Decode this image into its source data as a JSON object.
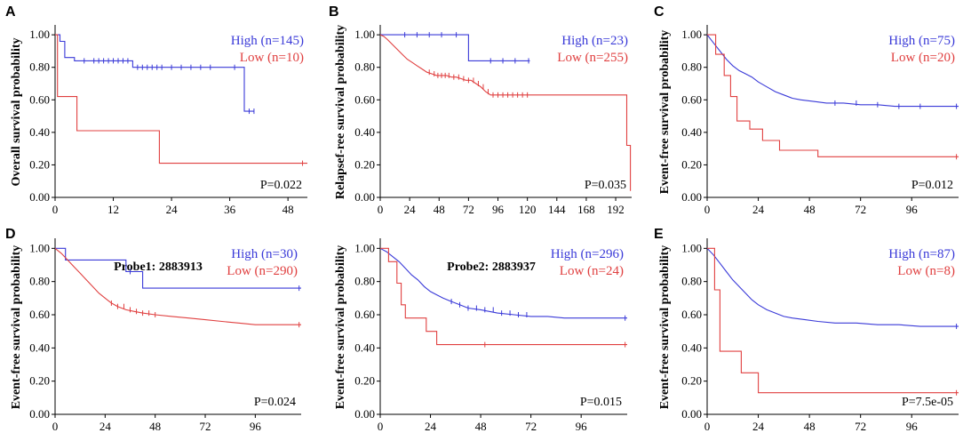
{
  "colors": {
    "high": "#3a3ad8",
    "low": "#e04040",
    "axis": "#000000"
  },
  "chart_data": [
    {
      "type": "line",
      "panel_letter": "A",
      "title": "",
      "ylabel": "Overall survival probability",
      "xlabel": "",
      "xlim": [
        0,
        52
      ],
      "ylim": [
        0,
        1.05
      ],
      "x_ticks": [
        0,
        12,
        24,
        36,
        48
      ],
      "y_ticks": [
        0,
        0.2,
        0.4,
        0.6,
        0.8,
        1.0
      ],
      "legend": [
        {
          "text": "High (n=145)",
          "series": "high"
        },
        {
          "text": "Low  (n=10)",
          "series": "low"
        }
      ],
      "pvalue": "P=0.022",
      "series": [
        {
          "name": "high",
          "x": [
            0,
            1,
            1,
            2,
            2,
            4,
            4,
            16,
            16,
            39,
            39,
            41
          ],
          "y": [
            1.0,
            1.0,
            0.96,
            0.96,
            0.86,
            0.86,
            0.84,
            0.84,
            0.8,
            0.8,
            0.53,
            0.53
          ],
          "censor_x": [
            6,
            8,
            9,
            10,
            11,
            12,
            13,
            14,
            15,
            17,
            18,
            19,
            20,
            21,
            22,
            24,
            26,
            28,
            30,
            32,
            37,
            40,
            41
          ]
        },
        {
          "name": "low",
          "x": [
            0,
            0.5,
            0.5,
            4.5,
            4.5,
            21.5,
            21.5,
            52
          ],
          "y": [
            1.0,
            1.0,
            0.62,
            0.62,
            0.41,
            0.41,
            0.21,
            0.21
          ],
          "censor_x": [
            51
          ]
        }
      ]
    },
    {
      "type": "line",
      "panel_letter": "B",
      "title": "",
      "ylabel": "Relapsef-ree survival probability",
      "xlabel": "",
      "xlim": [
        0,
        205
      ],
      "ylim": [
        0,
        1.05
      ],
      "x_ticks": [
        0,
        24,
        48,
        72,
        96,
        120,
        144,
        168,
        192
      ],
      "y_ticks": [
        0,
        0.2,
        0.4,
        0.6,
        0.8,
        1.0
      ],
      "legend": [
        {
          "text": "High (n=23)",
          "series": "high"
        },
        {
          "text": "Low (n=255)",
          "series": "low"
        }
      ],
      "pvalue": "P=0.035",
      "series": [
        {
          "name": "high",
          "x": [
            0,
            72,
            72,
            122
          ],
          "y": [
            1.0,
            1.0,
            0.84,
            0.84
          ],
          "censor_x": [
            20,
            30,
            40,
            50,
            62,
            90,
            100,
            110,
            121
          ]
        },
        {
          "name": "low",
          "x": [
            0,
            3,
            6,
            10,
            14,
            18,
            22,
            26,
            30,
            34,
            38,
            42,
            46,
            50,
            54,
            58,
            62,
            66,
            70,
            74,
            78,
            82,
            86,
            90,
            100,
            120,
            201,
            201,
            204,
            204
          ],
          "y": [
            1.0,
            0.99,
            0.97,
            0.94,
            0.91,
            0.88,
            0.85,
            0.83,
            0.81,
            0.79,
            0.77,
            0.76,
            0.75,
            0.75,
            0.75,
            0.74,
            0.74,
            0.73,
            0.72,
            0.72,
            0.7,
            0.68,
            0.65,
            0.63,
            0.63,
            0.63,
            0.63,
            0.32,
            0.32,
            0.04
          ],
          "censor_x": [
            40,
            44,
            47,
            50,
            53,
            56,
            60,
            64,
            68,
            72,
            76,
            80,
            84,
            88,
            92,
            96,
            100,
            104,
            108,
            112,
            116,
            120
          ]
        }
      ]
    },
    {
      "type": "line",
      "panel_letter": "C",
      "title": "",
      "ylabel": "Event-free survival probability",
      "xlabel": "",
      "xlim": [
        0,
        118
      ],
      "ylim": [
        0,
        1.05
      ],
      "x_ticks": [
        0,
        24,
        48,
        72,
        96
      ],
      "y_ticks": [
        0,
        0.2,
        0.4,
        0.6,
        0.8,
        1.0
      ],
      "legend": [
        {
          "text": "High (n=75)",
          "series": "high"
        },
        {
          "text": "Low (n=20)",
          "series": "low"
        }
      ],
      "pvalue": "P=0.012",
      "series": [
        {
          "name": "high",
          "x": [
            0,
            3,
            6,
            9,
            12,
            15,
            18,
            21,
            24,
            28,
            32,
            36,
            40,
            44,
            50,
            56,
            64,
            72,
            80,
            88,
            96,
            118
          ],
          "y": [
            1.0,
            0.95,
            0.9,
            0.85,
            0.81,
            0.78,
            0.76,
            0.74,
            0.71,
            0.68,
            0.65,
            0.63,
            0.61,
            0.6,
            0.59,
            0.58,
            0.58,
            0.57,
            0.57,
            0.56,
            0.56,
            0.56
          ],
          "censor_x": [
            60,
            70,
            80,
            90,
            100,
            117
          ]
        },
        {
          "name": "low",
          "x": [
            0,
            4,
            4,
            8,
            8,
            11,
            11,
            14,
            14,
            20,
            20,
            26,
            26,
            34,
            34,
            52,
            52,
            90,
            90,
            118
          ],
          "y": [
            1.0,
            1.0,
            0.88,
            0.88,
            0.75,
            0.75,
            0.62,
            0.62,
            0.47,
            0.47,
            0.42,
            0.42,
            0.35,
            0.35,
            0.29,
            0.29,
            0.25,
            0.25,
            0.25,
            0.25
          ],
          "censor_x": [
            117
          ]
        }
      ]
    },
    {
      "type": "line",
      "panel_letter": "D",
      "title": "Probe1: 2883913",
      "ylabel": "Event-free survival probability",
      "xlabel": "",
      "xlim": [
        0,
        118
      ],
      "ylim": [
        0,
        1.05
      ],
      "x_ticks": [
        0,
        24,
        48,
        72,
        96
      ],
      "y_ticks": [
        0,
        0.2,
        0.4,
        0.6,
        0.8,
        1.0
      ],
      "legend": [
        {
          "text": "High (n=30)",
          "series": "high"
        },
        {
          "text": "Low (n=290)",
          "series": "low"
        }
      ],
      "pvalue": "P=0.024",
      "series": [
        {
          "name": "high",
          "x": [
            0,
            5,
            5,
            34,
            34,
            42,
            42,
            118
          ],
          "y": [
            1.0,
            1.0,
            0.93,
            0.93,
            0.86,
            0.86,
            0.76,
            0.76
          ],
          "censor_x": [
            36,
            117
          ]
        },
        {
          "name": "low",
          "x": [
            0,
            3,
            6,
            9,
            12,
            15,
            18,
            21,
            24,
            27,
            30,
            34,
            38,
            42,
            48,
            56,
            64,
            72,
            80,
            88,
            96,
            118
          ],
          "y": [
            1.0,
            0.97,
            0.93,
            0.89,
            0.85,
            0.81,
            0.77,
            0.73,
            0.7,
            0.67,
            0.65,
            0.63,
            0.62,
            0.61,
            0.6,
            0.59,
            0.58,
            0.57,
            0.56,
            0.55,
            0.54,
            0.54
          ],
          "censor_x": [
            27,
            30,
            33,
            36,
            39,
            42,
            45,
            48,
            117
          ]
        }
      ]
    },
    {
      "type": "line",
      "panel_letter": "",
      "title": "Probe2: 2883937",
      "ylabel": "Event-free survival probability",
      "xlabel": "",
      "xlim": [
        0,
        118
      ],
      "ylim": [
        0,
        1.05
      ],
      "x_ticks": [
        0,
        24,
        48,
        72,
        96
      ],
      "y_ticks": [
        0,
        0.2,
        0.4,
        0.6,
        0.8,
        1.0
      ],
      "legend": [
        {
          "text": "High (n=296)",
          "series": "high"
        },
        {
          "text": "Low (n=24)",
          "series": "low"
        }
      ],
      "pvalue": "P=0.015",
      "series": [
        {
          "name": "high",
          "x": [
            0,
            3,
            6,
            9,
            12,
            15,
            18,
            21,
            24,
            27,
            30,
            34,
            38,
            42,
            48,
            56,
            64,
            72,
            80,
            88,
            96,
            118
          ],
          "y": [
            1.0,
            0.98,
            0.95,
            0.92,
            0.88,
            0.84,
            0.81,
            0.77,
            0.74,
            0.72,
            0.7,
            0.68,
            0.66,
            0.64,
            0.63,
            0.61,
            0.6,
            0.59,
            0.59,
            0.58,
            0.58,
            0.58
          ],
          "censor_x": [
            34,
            38,
            42,
            46,
            50,
            54,
            58,
            62,
            66,
            70,
            117
          ]
        },
        {
          "name": "low",
          "x": [
            0,
            4,
            4,
            8,
            8,
            10,
            10,
            12,
            12,
            22,
            22,
            27,
            27,
            118
          ],
          "y": [
            1.0,
            1.0,
            0.92,
            0.92,
            0.79,
            0.79,
            0.66,
            0.66,
            0.58,
            0.58,
            0.5,
            0.5,
            0.42,
            0.42
          ],
          "censor_x": [
            50,
            117
          ]
        }
      ]
    },
    {
      "type": "line",
      "panel_letter": "E",
      "title": "",
      "ylabel": "Event-free survival probability",
      "xlabel": "",
      "xlim": [
        0,
        118
      ],
      "ylim": [
        0,
        1.05
      ],
      "x_ticks": [
        0,
        24,
        48,
        72,
        96
      ],
      "y_ticks": [
        0,
        0.2,
        0.4,
        0.6,
        0.8,
        1.0
      ],
      "legend": [
        {
          "text": "High (n=87)",
          "series": "high"
        },
        {
          "text": "Low  (n=8)",
          "series": "low"
        }
      ],
      "pvalue": "P=7.5e-05",
      "series": [
        {
          "name": "high",
          "x": [
            0,
            3,
            6,
            9,
            12,
            15,
            18,
            21,
            24,
            28,
            32,
            36,
            40,
            46,
            52,
            60,
            70,
            80,
            90,
            100,
            118
          ],
          "y": [
            1.0,
            0.96,
            0.91,
            0.86,
            0.81,
            0.77,
            0.73,
            0.69,
            0.66,
            0.63,
            0.61,
            0.59,
            0.58,
            0.57,
            0.56,
            0.55,
            0.55,
            0.54,
            0.54,
            0.53,
            0.53
          ],
          "censor_x": [
            117
          ]
        },
        {
          "name": "low",
          "x": [
            0,
            3.5,
            3.5,
            6,
            6,
            16,
            16,
            24,
            24,
            118
          ],
          "y": [
            1.0,
            1.0,
            0.75,
            0.75,
            0.38,
            0.38,
            0.25,
            0.25,
            0.13,
            0.13
          ],
          "censor_x": [
            117
          ]
        }
      ]
    }
  ]
}
